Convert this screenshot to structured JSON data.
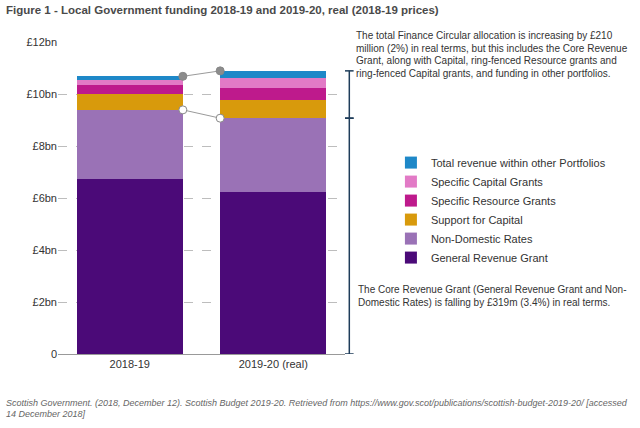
{
  "chart_data": {
    "type": "bar",
    "title": "Figure 1 - Local Government funding 2018-19 and 2019-20, real (2018-19 prices)",
    "categories": [
      "2018-19",
      "2019-20 (real)"
    ],
    "series": [
      {
        "name": "General Revenue Grant",
        "color": "#4b0a78",
        "values": [
          6.75,
          6.25
        ]
      },
      {
        "name": "Non-Domestic Rates",
        "color": "#9a72b6",
        "values": [
          2.64,
          2.82
        ]
      },
      {
        "name": "Support for Capital",
        "color": "#d89a0c",
        "values": [
          0.6,
          0.7
        ]
      },
      {
        "name": "Specific Resource Grants",
        "color": "#be1a8c",
        "values": [
          0.35,
          0.45
        ]
      },
      {
        "name": "Specific Capital Grants",
        "color": "#e27ac6",
        "values": [
          0.2,
          0.4
        ]
      },
      {
        "name": "Total revenue within other Portfolios",
        "color": "#1e88c8",
        "values": [
          0.14,
          0.27
        ]
      }
    ],
    "stacked": true,
    "ylim": [
      0,
      12
    ],
    "yticks": [
      0,
      {
        "value": 2,
        "label": "£2bn"
      },
      {
        "value": 4,
        "label": "£4bn"
      },
      {
        "value": 6,
        "label": "£6bn"
      },
      {
        "value": 8,
        "label": "£8bn"
      },
      {
        "value": 10,
        "label": "£10bn"
      },
      {
        "value": 12,
        "label": "£12bn"
      }
    ],
    "grid": true,
    "legend": "right",
    "annotations": [
      "The total Finance Circular allocation is increasing by £210 million (2%) in real terms, but this includes the Core Revenue Grant, along with Capital, ring-fenced Resource grants and ring-fenced Capital grants, and funding in other portfolios.",
      "The Core Revenue Grant (General Revenue Grant and Non-Domestic Rates) is falling by £319m (3.4%) in real terms."
    ],
    "source": "Scottish Government. (2018, December 12). Scottish Budget 2019-20. Retrieved from https://www.gov.scot/publications/scottish-budget-2019-20/ [accessed 14 December 2018]"
  }
}
